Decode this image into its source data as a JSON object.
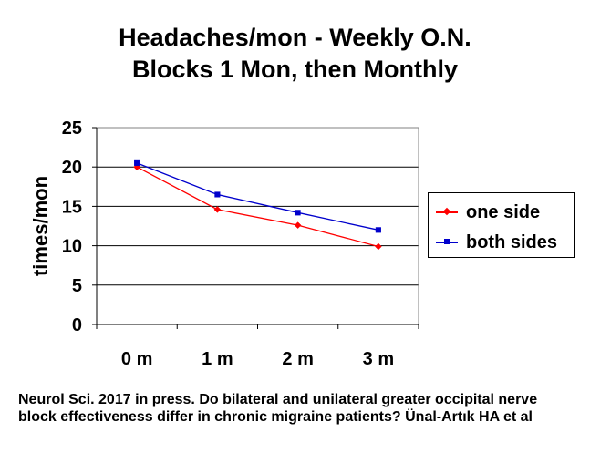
{
  "chart_data": {
    "type": "line",
    "title_lines": [
      "Headaches/mon - Weekly O.N.",
      "Blocks 1 Mon, then Monthly"
    ],
    "xlabel": "",
    "ylabel": "times/mon",
    "categories": [
      "0 m",
      "1 m",
      "2 m",
      "3 m"
    ],
    "ylim": [
      0,
      25
    ],
    "yticks": [
      0,
      5,
      10,
      15,
      20,
      25
    ],
    "grid": "horizontal",
    "legend_position": "right",
    "series": [
      {
        "name": "one side",
        "values": [
          20.0,
          14.6,
          12.6,
          9.9
        ],
        "color": "#ff0000",
        "marker": "diamond"
      },
      {
        "name": "both sides",
        "values": [
          20.5,
          16.5,
          14.2,
          12.0
        ],
        "color": "#0000cc",
        "marker": "square"
      }
    ]
  },
  "citation": "Neurol Sci. 2017 in press. Do bilateral and unilateral greater occipital nerve block effectiveness differ in chronic migraine patients? Ünal-Artık HA et al"
}
